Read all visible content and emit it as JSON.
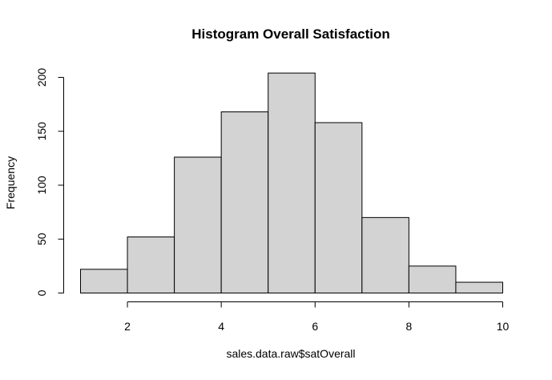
{
  "chart_data": {
    "type": "bar",
    "title": "Histogram Overall Satisfaction",
    "xlabel": "sales.data.raw$satOverall",
    "ylabel": "Frequency",
    "bin_edges": [
      1,
      2,
      3,
      4,
      5,
      6,
      7,
      8,
      9,
      10
    ],
    "values": [
      22,
      52,
      126,
      168,
      204,
      158,
      70,
      25,
      10
    ],
    "xlim": [
      1,
      10
    ],
    "ylim": [
      0,
      200
    ],
    "x_ticks": [
      2,
      4,
      6,
      8,
      10
    ],
    "y_ticks": [
      0,
      50,
      100,
      150,
      200
    ],
    "bar_color": "#d3d3d3",
    "grid": false,
    "legend": "none"
  }
}
